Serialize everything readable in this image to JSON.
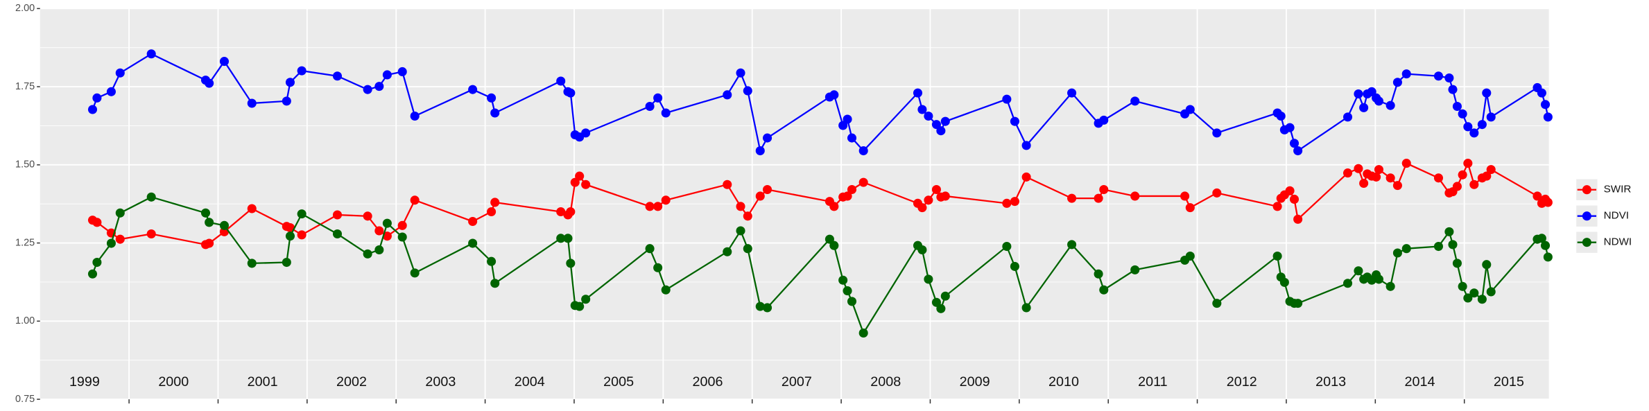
{
  "chart_data": {
    "type": "line",
    "x": [
      1999.59,
      1999.64,
      1999.8,
      1999.9,
      2000.25,
      2000.86,
      2000.9,
      2001.07,
      2001.38,
      2001.77,
      2001.81,
      2001.94,
      2002.34,
      2002.68,
      2002.81,
      2002.9,
      2003.07,
      2003.21,
      2003.86,
      2004.07,
      2004.11,
      2004.85,
      2004.93,
      2004.96,
      2005.01,
      2005.06,
      2005.13,
      2005.85,
      2005.94,
      2006.03,
      2006.72,
      2006.87,
      2006.95,
      2007.09,
      2007.17,
      2007.87,
      2007.92,
      2008.02,
      2008.07,
      2008.12,
      2008.25,
      2008.86,
      2008.91,
      2008.98,
      2009.07,
      2009.12,
      2009.17,
      2009.86,
      2009.95,
      2010.08,
      2010.59,
      2010.89,
      2010.95,
      2011.3,
      2011.86,
      2011.92,
      2012.22,
      2012.9,
      2012.94,
      2012.98,
      2013.04,
      2013.09,
      2013.13,
      2013.69,
      2013.81,
      2013.87,
      2013.91,
      2013.96,
      2014.01,
      2014.04,
      2014.17,
      2014.25,
      2014.35,
      2014.71,
      2014.83,
      2014.87,
      2014.92,
      2014.98,
      2015.04,
      2015.11,
      2015.2,
      2015.25,
      2015.3,
      2015.82,
      2015.87,
      2015.91,
      2015.94
    ],
    "series": [
      {
        "name": "SWIR",
        "color": "#ff0000",
        "values": [
          1.323,
          1.316,
          1.282,
          1.262,
          1.279,
          1.245,
          1.249,
          1.286,
          1.36,
          1.303,
          1.299,
          1.276,
          1.34,
          1.336,
          1.289,
          1.272,
          1.306,
          1.387,
          1.319,
          1.35,
          1.38,
          1.35,
          1.34,
          1.35,
          1.444,
          1.464,
          1.437,
          1.367,
          1.367,
          1.387,
          1.437,
          1.367,
          1.336,
          1.4,
          1.421,
          1.383,
          1.367,
          1.397,
          1.4,
          1.421,
          1.444,
          1.377,
          1.363,
          1.387,
          1.421,
          1.397,
          1.4,
          1.377,
          1.383,
          1.461,
          1.393,
          1.393,
          1.421,
          1.4,
          1.4,
          1.363,
          1.41,
          1.367,
          1.393,
          1.404,
          1.417,
          1.39,
          1.326,
          1.474,
          1.488,
          1.441,
          1.471,
          1.464,
          1.461,
          1.485,
          1.458,
          1.434,
          1.505,
          1.458,
          1.41,
          1.414,
          1.431,
          1.468,
          1.505,
          1.437,
          1.458,
          1.464,
          1.485,
          1.4,
          1.377,
          1.39,
          1.38
        ]
      },
      {
        "name": "NDVI",
        "color": "#0000ff",
        "values": [
          1.677,
          1.714,
          1.734,
          1.794,
          1.855,
          1.771,
          1.761,
          1.831,
          1.697,
          1.704,
          1.764,
          1.801,
          1.784,
          1.741,
          1.751,
          1.788,
          1.798,
          1.656,
          1.741,
          1.714,
          1.666,
          1.768,
          1.734,
          1.73,
          1.596,
          1.589,
          1.602,
          1.687,
          1.714,
          1.666,
          1.724,
          1.794,
          1.737,
          1.545,
          1.586,
          1.717,
          1.724,
          1.626,
          1.646,
          1.586,
          1.545,
          1.73,
          1.677,
          1.656,
          1.629,
          1.609,
          1.639,
          1.71,
          1.639,
          1.562,
          1.73,
          1.633,
          1.643,
          1.704,
          1.663,
          1.677,
          1.602,
          1.666,
          1.656,
          1.612,
          1.619,
          1.569,
          1.545,
          1.653,
          1.727,
          1.683,
          1.727,
          1.734,
          1.714,
          1.704,
          1.69,
          1.764,
          1.791,
          1.784,
          1.778,
          1.741,
          1.687,
          1.663,
          1.622,
          1.602,
          1.629,
          1.73,
          1.653,
          1.747,
          1.73,
          1.693,
          1.653
        ]
      },
      {
        "name": "NDWI",
        "color": "#006400",
        "values": [
          1.151,
          1.188,
          1.249,
          1.346,
          1.397,
          1.346,
          1.316,
          1.306,
          1.185,
          1.188,
          1.272,
          1.343,
          1.279,
          1.215,
          1.228,
          1.313,
          1.269,
          1.154,
          1.249,
          1.191,
          1.121,
          1.265,
          1.265,
          1.185,
          1.05,
          1.047,
          1.07,
          1.232,
          1.171,
          1.1,
          1.222,
          1.289,
          1.232,
          1.047,
          1.043,
          1.262,
          1.242,
          1.131,
          1.097,
          1.063,
          0.962,
          1.242,
          1.228,
          1.134,
          1.06,
          1.04,
          1.08,
          1.239,
          1.175,
          1.043,
          1.245,
          1.151,
          1.1,
          1.164,
          1.195,
          1.208,
          1.057,
          1.208,
          1.141,
          1.124,
          1.063,
          1.057,
          1.057,
          1.121,
          1.161,
          1.134,
          1.141,
          1.131,
          1.148,
          1.134,
          1.111,
          1.218,
          1.232,
          1.239,
          1.286,
          1.245,
          1.185,
          1.111,
          1.074,
          1.09,
          1.07,
          1.181,
          1.094,
          1.262,
          1.265,
          1.242,
          1.205
        ]
      }
    ],
    "xlim": [
      1999.0,
      2015.95
    ],
    "xticks": [
      2000,
      2001,
      2002,
      2003,
      2004,
      2005,
      2006,
      2007,
      2008,
      2009,
      2010,
      2011,
      2012,
      2013,
      2014,
      2015
    ],
    "ylim": [
      0.75,
      2.0
    ],
    "yticks": [
      {
        "value": 0.75,
        "label": "0.75"
      },
      {
        "value": 1.0,
        "label": "1.00"
      },
      {
        "value": 1.25,
        "label": "1.25"
      },
      {
        "value": 1.5,
        "label": "1.50"
      },
      {
        "value": 1.75,
        "label": "1.75"
      },
      {
        "value": 2.0,
        "label": "2.00"
      }
    ],
    "year_labels": [
      "1999",
      "2000",
      "2001",
      "2002",
      "2003",
      "2004",
      "2005",
      "2006",
      "2007",
      "2008",
      "2009",
      "2010",
      "2011",
      "2012",
      "2013",
      "2014",
      "2015"
    ],
    "grid": true,
    "legend": "right"
  }
}
